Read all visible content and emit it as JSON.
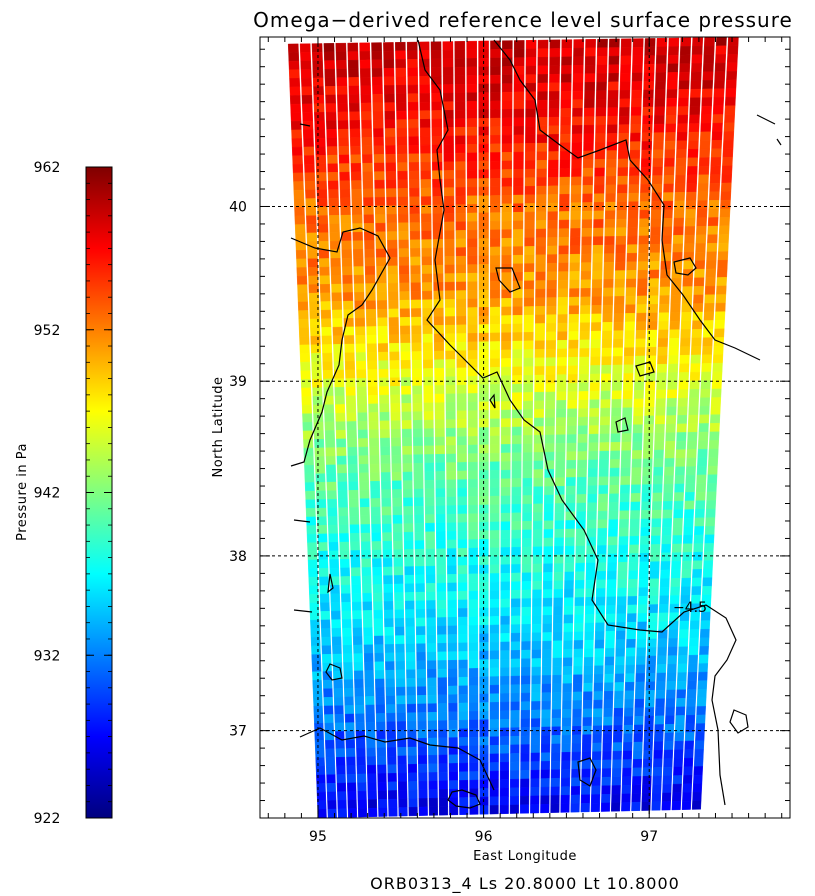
{
  "chart_data": {
    "type": "heatmap",
    "title": "Omega−derived reference level surface pressure",
    "xlabel": "East Longitude",
    "ylabel": "North Latitude",
    "xlim": [
      94.65,
      97.85
    ],
    "ylim": [
      36.5,
      40.97
    ],
    "x_ticks": [
      "95",
      "96",
      "97"
    ],
    "y_ticks": [
      "37",
      "38",
      "39",
      "40"
    ],
    "grid": true,
    "colorbar": {
      "label": "Pressure in Pa",
      "range": [
        922,
        962
      ],
      "ticks": [
        "962",
        "952",
        "942",
        "932",
        "922"
      ],
      "colors": [
        "#00007f",
        "#0000ff",
        "#0080ff",
        "#00ffff",
        "#80ff80",
        "#ffff00",
        "#ff8000",
        "#ff0000",
        "#7f0000"
      ]
    },
    "swath_corners": {
      "top_left": [
        94.82,
        40.93
      ],
      "top_right": [
        97.55,
        40.97
      ],
      "bottom_right": [
        97.32,
        36.55
      ],
      "bottom_left": [
        95.0,
        36.5
      ]
    },
    "pressure_by_latitude": {
      "lat": [
        36.5,
        37.0,
        37.5,
        38.0,
        38.5,
        39.0,
        39.5,
        40.0,
        40.5,
        40.95
      ],
      "value": [
        926,
        931,
        935,
        938,
        941,
        946,
        951,
        953,
        957,
        959
      ]
    },
    "contour_label": "−4.5",
    "footer": "ORB0313_4  Ls 20.8000  Lt 10.8000"
  }
}
